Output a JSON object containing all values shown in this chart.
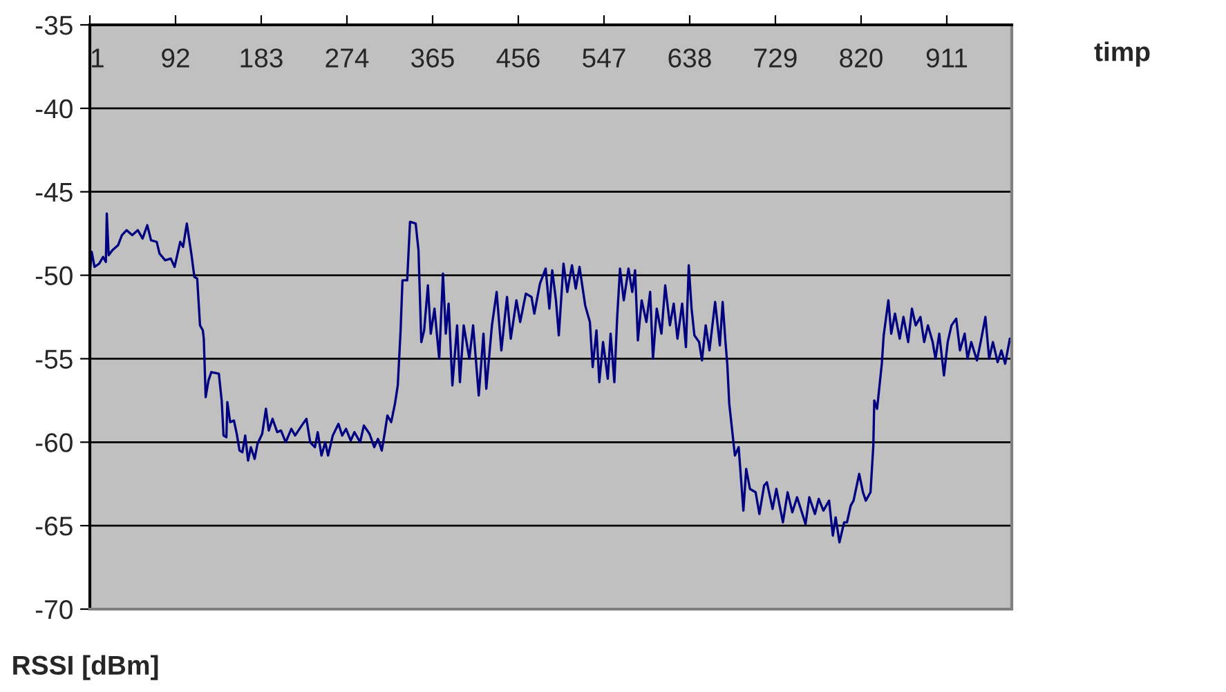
{
  "chart_data": {
    "type": "line",
    "xlabel": "timp",
    "ylabel": "RSSI [dBm]",
    "x": [
      1,
      3,
      6,
      11,
      15,
      18,
      19,
      21,
      25,
      31,
      35,
      40,
      46,
      52,
      57,
      62,
      66,
      72,
      75,
      81,
      87,
      91,
      97,
      100,
      104,
      109,
      112,
      115,
      118,
      121,
      122,
      124,
      127,
      130,
      138,
      141,
      143,
      146,
      147,
      150,
      154,
      157,
      160,
      163,
      166,
      169,
      172,
      176,
      179,
      184,
      188,
      191,
      195,
      200,
      204,
      209,
      215,
      219,
      226,
      231,
      235,
      240,
      243,
      247,
      251,
      254,
      259,
      265,
      269,
      273,
      278,
      282,
      288,
      292,
      298,
      303,
      307,
      311,
      314,
      317,
      321,
      325,
      328,
      331,
      333,
      338,
      341,
      347,
      350,
      353,
      356,
      360,
      363,
      367,
      372,
      376,
      379,
      382,
      386,
      391,
      394,
      398,
      404,
      408,
      414,
      419,
      422,
      428,
      433,
      438,
      444,
      448,
      454,
      458,
      464,
      470,
      473,
      479,
      485,
      489,
      492,
      496,
      499,
      504,
      508,
      513,
      517,
      521,
      527,
      532,
      535,
      539,
      542,
      546,
      551,
      554,
      558,
      561,
      564,
      568,
      573,
      577,
      580,
      583,
      587,
      592,
      596,
      599,
      603,
      608,
      612,
      617,
      621,
      625,
      630,
      634,
      637,
      640,
      643,
      648,
      651,
      655,
      659,
      665,
      670,
      673,
      676,
      678,
      680,
      686,
      690,
      695,
      698,
      702,
      708,
      712,
      717,
      720,
      726,
      730,
      737,
      742,
      747,
      752,
      756,
      761,
      765,
      771,
      775,
      780,
      786,
      790,
      793,
      797,
      802,
      805,
      809,
      812,
      818,
      822,
      825,
      830,
      833,
      834,
      837,
      842,
      844,
      849,
      852,
      856,
      861,
      865,
      870,
      874,
      878,
      883,
      887,
      891,
      896,
      899,
      903,
      908,
      912,
      916,
      921,
      925,
      930,
      933,
      937,
      943,
      947,
      952,
      956,
      960,
      965,
      969,
      973,
      978
    ],
    "series": [
      {
        "color": "#000080",
        "values": [
          -49.9,
          -48.6,
          -49.5,
          -49.3,
          -48.9,
          -49.2,
          -46.3,
          -48.8,
          -48.5,
          -48.2,
          -47.6,
          -47.3,
          -47.6,
          -47.3,
          -47.8,
          -47.0,
          -47.9,
          -48.0,
          -48.7,
          -49.1,
          -49.0,
          -49.5,
          -48.0,
          -48.3,
          -46.9,
          -48.8,
          -50.1,
          -50.2,
          -53.0,
          -53.3,
          -53.8,
          -57.3,
          -56.3,
          -55.8,
          -55.9,
          -57.5,
          -59.6,
          -59.7,
          -57.6,
          -58.8,
          -58.7,
          -59.5,
          -60.5,
          -60.6,
          -59.6,
          -61.1,
          -60.3,
          -61.0,
          -60.1,
          -59.5,
          -58.0,
          -59.3,
          -58.6,
          -59.4,
          -59.3,
          -60.0,
          -59.2,
          -59.6,
          -59.0,
          -58.6,
          -60.0,
          -60.3,
          -59.4,
          -60.8,
          -60.0,
          -60.8,
          -59.6,
          -58.9,
          -59.6,
          -59.2,
          -59.9,
          -59.4,
          -60.0,
          -59.0,
          -59.5,
          -60.3,
          -59.8,
          -60.5,
          -59.5,
          -58.4,
          -58.8,
          -57.7,
          -56.6,
          -53.3,
          -50.3,
          -50.3,
          -46.8,
          -46.9,
          -48.5,
          -54.0,
          -53.3,
          -50.6,
          -53.5,
          -52.0,
          -55.0,
          -49.9,
          -53.5,
          -51.7,
          -56.6,
          -53.0,
          -56.4,
          -53.0,
          -55.0,
          -53.0,
          -57.2,
          -53.5,
          -56.8,
          -53.0,
          -51.0,
          -54.5,
          -51.3,
          -53.8,
          -51.5,
          -52.8,
          -51.1,
          -51.3,
          -52.3,
          -50.5,
          -49.6,
          -52.0,
          -49.7,
          -51.5,
          -53.6,
          -49.3,
          -51.0,
          -49.4,
          -50.8,
          -49.5,
          -51.8,
          -52.8,
          -55.5,
          -53.3,
          -56.4,
          -54.0,
          -56.2,
          -53.5,
          -56.4,
          -52.5,
          -49.6,
          -51.5,
          -49.6,
          -51.0,
          -49.7,
          -53.9,
          -51.5,
          -52.8,
          -51.0,
          -55.0,
          -52.0,
          -53.5,
          -50.6,
          -53.0,
          -51.7,
          -53.8,
          -51.7,
          -54.3,
          -49.4,
          -52.0,
          -53.6,
          -54.0,
          -55.1,
          -53.0,
          -54.5,
          -51.6,
          -54.2,
          -51.6,
          -54.0,
          -55.4,
          -57.7,
          -60.8,
          -60.3,
          -64.1,
          -61.6,
          -62.8,
          -63.0,
          -64.3,
          -62.6,
          -62.4,
          -64.0,
          -62.8,
          -64.8,
          -63.0,
          -64.2,
          -63.3,
          -64.0,
          -64.9,
          -63.3,
          -64.3,
          -63.4,
          -64.1,
          -63.5,
          -65.6,
          -64.5,
          -66.0,
          -64.8,
          -64.8,
          -63.8,
          -63.5,
          -61.9,
          -63.0,
          -63.5,
          -63.0,
          -60.2,
          -57.5,
          -58.0,
          -55.3,
          -53.6,
          -51.5,
          -53.5,
          -52.3,
          -53.8,
          -52.5,
          -54.0,
          -52.0,
          -53.0,
          -52.5,
          -54.0,
          -53.0,
          -54.0,
          -55.0,
          -53.5,
          -56.0,
          -54.0,
          -53.0,
          -52.6,
          -54.5,
          -53.5,
          -55.0,
          -54.0,
          -55.1,
          -54.0,
          -52.5,
          -55.0,
          -54.0,
          -55.2,
          -54.5,
          -55.3,
          -53.8
        ]
      }
    ],
    "xlim": [
      1,
      980
    ],
    "xticks": [
      1,
      92,
      183,
      274,
      365,
      456,
      547,
      638,
      729,
      820,
      911
    ],
    "ylim": [
      -70,
      -35
    ],
    "yticks": [
      -35,
      -40,
      -45,
      -50,
      -55,
      -60,
      -65,
      -70
    ],
    "grid": "y"
  }
}
